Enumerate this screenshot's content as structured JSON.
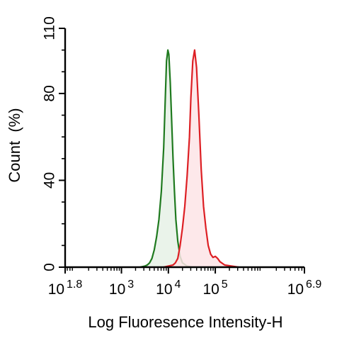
{
  "chart_data": {
    "type": "area",
    "title": "",
    "xlabel": "Log Fluoresence Intensity-H",
    "ylabel": "Count  (%)",
    "x_scale": "log10",
    "xlim": [
      1.8,
      6.9
    ],
    "ylim": [
      0,
      110
    ],
    "grid": false,
    "legend": "none",
    "x_ticks": [
      {
        "base": "10",
        "exp": "1.8",
        "value": 1.8
      },
      {
        "base": "10",
        "exp": "3",
        "value": 3
      },
      {
        "base": "10",
        "exp": "4",
        "value": 4
      },
      {
        "base": "10",
        "exp": "5",
        "value": 5
      },
      {
        "base": "10",
        "exp": "6.9",
        "value": 6.9
      }
    ],
    "y_ticks": [
      {
        "label": "0",
        "value": 0
      },
      {
        "label": "40",
        "value": 40
      },
      {
        "label": "80",
        "value": 80
      },
      {
        "label": "110",
        "value": 110
      }
    ],
    "series": [
      {
        "color": "#1f7a1f",
        "fill": "#e6f1e6",
        "points": [
          [
            3.4,
            0
          ],
          [
            3.5,
            0.5
          ],
          [
            3.55,
            1
          ],
          [
            3.6,
            2
          ],
          [
            3.65,
            4
          ],
          [
            3.7,
            8
          ],
          [
            3.75,
            14
          ],
          [
            3.8,
            22
          ],
          [
            3.85,
            35
          ],
          [
            3.9,
            55
          ],
          [
            3.93,
            75
          ],
          [
            3.96,
            95
          ],
          [
            3.99,
            100
          ],
          [
            4.01,
            98
          ],
          [
            4.04,
            85
          ],
          [
            4.07,
            68
          ],
          [
            4.1,
            50
          ],
          [
            4.13,
            35
          ],
          [
            4.16,
            22
          ],
          [
            4.2,
            12
          ],
          [
            4.25,
            5
          ],
          [
            4.3,
            2
          ],
          [
            4.4,
            0.5
          ],
          [
            4.5,
            0
          ]
        ]
      },
      {
        "color": "#dd1f24",
        "fill": "#fde4e6",
        "points": [
          [
            3.9,
            0
          ],
          [
            4.0,
            0.5
          ],
          [
            4.1,
            1
          ],
          [
            4.15,
            2
          ],
          [
            4.2,
            4
          ],
          [
            4.25,
            10
          ],
          [
            4.3,
            18
          ],
          [
            4.35,
            28
          ],
          [
            4.4,
            42
          ],
          [
            4.45,
            60
          ],
          [
            4.48,
            78
          ],
          [
            4.52,
            95
          ],
          [
            4.56,
            100
          ],
          [
            4.6,
            92
          ],
          [
            4.65,
            70
          ],
          [
            4.7,
            45
          ],
          [
            4.75,
            28
          ],
          [
            4.8,
            18
          ],
          [
            4.85,
            10
          ],
          [
            4.9,
            6
          ],
          [
            4.95,
            4.5
          ],
          [
            5.0,
            5
          ],
          [
            5.05,
            4
          ],
          [
            5.1,
            2.5
          ],
          [
            5.2,
            1
          ],
          [
            5.35,
            0.5
          ],
          [
            5.5,
            0
          ]
        ]
      }
    ]
  }
}
